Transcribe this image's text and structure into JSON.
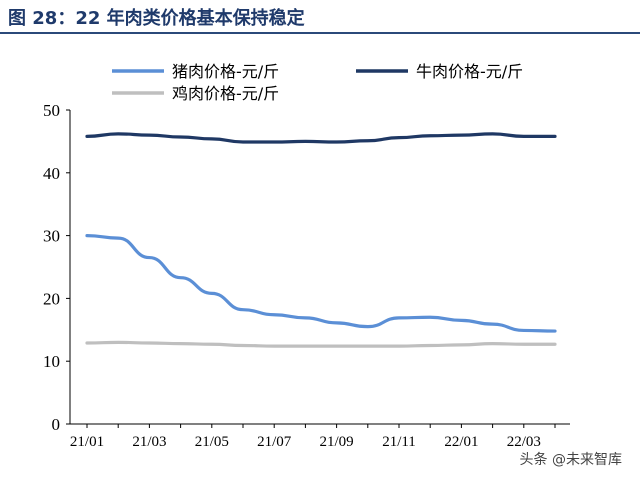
{
  "figure_title": "图 28：22 年肉类价格基本保持稳定",
  "watermark": "头条 @未来智库",
  "colors": {
    "title": "#1f3a6b",
    "pork": "#5b8fd6",
    "beef": "#1f3864",
    "chicken": "#bfbfbf"
  },
  "chart_data": {
    "type": "line",
    "title": "",
    "xlabel": "",
    "ylabel": "",
    "ylim": [
      0,
      50
    ],
    "yticks": [
      0,
      10,
      20,
      30,
      40,
      50
    ],
    "xtick_labels": [
      "21/01",
      "21/03",
      "21/05",
      "21/07",
      "21/09",
      "21/11",
      "22/01",
      "22/03"
    ],
    "grid": false,
    "legend_position": "top",
    "x": [
      "21/01",
      "21/02",
      "21/03",
      "21/04",
      "21/05",
      "21/06",
      "21/07",
      "21/08",
      "21/09",
      "21/10",
      "21/11",
      "21/12",
      "22/01",
      "22/02",
      "22/03",
      "22/04"
    ],
    "series": [
      {
        "name": "猪肉价格-元/斤",
        "color": "#5b8fd6",
        "values": [
          30.0,
          29.6,
          26.5,
          23.3,
          20.8,
          18.2,
          17.4,
          16.9,
          16.1,
          15.5,
          16.9,
          17.0,
          16.5,
          15.9,
          14.9,
          14.8
        ]
      },
      {
        "name": "牛肉价格-元/斤",
        "color": "#1f3864",
        "values": [
          45.8,
          46.2,
          46.0,
          45.7,
          45.4,
          44.9,
          44.9,
          45.0,
          44.9,
          45.1,
          45.6,
          45.9,
          46.0,
          46.2,
          45.8,
          45.8
        ]
      },
      {
        "name": "鸡肉价格-元/斤",
        "color": "#bfbfbf",
        "values": [
          12.9,
          13.0,
          12.9,
          12.8,
          12.7,
          12.5,
          12.4,
          12.4,
          12.4,
          12.4,
          12.4,
          12.5,
          12.6,
          12.8,
          12.7,
          12.7
        ]
      }
    ]
  }
}
